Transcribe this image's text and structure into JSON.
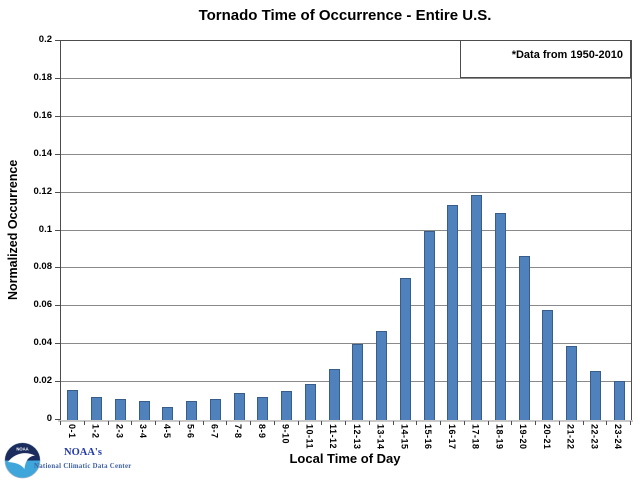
{
  "annotation": "*Data from 1950-2010",
  "footer": {
    "org": "NOAA's",
    "center": "National Climatic Data Center",
    "logo_icon": "noaa-seagull-logo"
  },
  "colors": {
    "bar_fill": "#4F81BD",
    "bar_border": "#385D8A",
    "gridline": "#8a8a8a",
    "axis": "#4d4d4d",
    "axis_band": "#c9c9c9",
    "logo_navy": "#1B2D5E",
    "logo_cyan": "#3FA6DB",
    "noaa_text": "#2239A8",
    "ncdc_text": "#3C5FA0"
  },
  "chart_data": {
    "type": "bar",
    "title": "Tornado Time of Occurrence - Entire U.S.",
    "xlabel": "Local Time of Day",
    "ylabel": "Normalized Occurrence",
    "ylim": [
      0,
      0.2
    ],
    "ytick_step": 0.02,
    "yticks": [
      "0",
      "0.02",
      "0.04",
      "0.06",
      "0.08",
      "0.1",
      "0.12",
      "0.14",
      "0.16",
      "0.18",
      "0.2"
    ],
    "grid": true,
    "legend": null,
    "categories": [
      "0-1",
      "1-2",
      "2-3",
      "3-4",
      "4-5",
      "5-6",
      "6-7",
      "7-8",
      "8-9",
      "9-10",
      "10-11",
      "11-12",
      "12-13",
      "13-14",
      "14-15",
      "15-16",
      "16-17",
      "17-18",
      "18-19",
      "19-20",
      "20-21",
      "21-22",
      "22-23",
      "23-24"
    ],
    "values": [
      0.016,
      0.012,
      0.011,
      0.01,
      0.007,
      0.01,
      0.011,
      0.0145,
      0.012,
      0.0155,
      0.019,
      0.027,
      0.04,
      0.047,
      0.075,
      0.0995,
      0.1135,
      0.1185,
      0.109,
      0.0865,
      0.058,
      0.039,
      0.026,
      0.0205
    ]
  }
}
